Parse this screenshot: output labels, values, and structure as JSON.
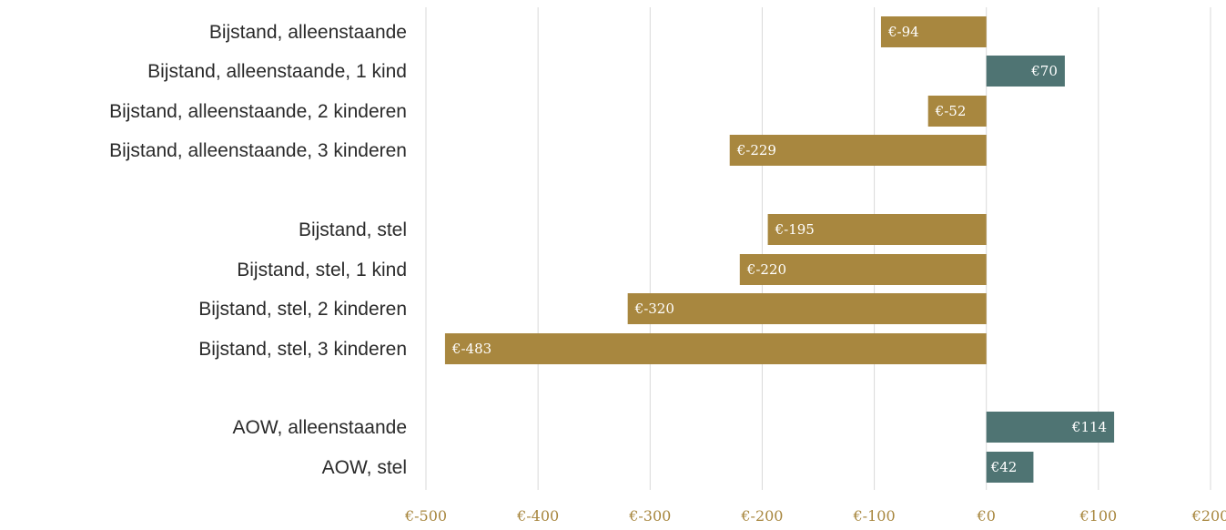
{
  "chart_data": {
    "type": "bar",
    "orientation": "horizontal",
    "title": "",
    "xlabel": "",
    "ylabel": "",
    "xlim": [
      -500,
      200
    ],
    "grid": "vertical",
    "legend": "none",
    "categories": [
      "Bijstand, alleenstaande",
      "Bijstand, alleenstaande, 1 kind",
      "Bijstand, alleenstaande, 2 kinderen",
      "Bijstand, alleenstaande, 3 kinderen",
      "Bijstand, stel",
      "Bijstand, stel, 1 kind",
      "Bijstand, stel, 2 kinderen",
      "Bijstand, stel, 3 kinderen",
      "AOW, alleenstaande",
      "AOW, stel"
    ],
    "groups": [
      [
        0,
        1,
        2,
        3
      ],
      [
        4,
        5,
        6,
        7
      ],
      [
        8,
        9
      ]
    ],
    "values": [
      -94,
      70,
      -52,
      -229,
      -195,
      -220,
      -320,
      -483,
      114,
      42
    ],
    "data_labels": [
      "€-94",
      "€70",
      "€-52",
      "€-229",
      "€-195",
      "€-220",
      "€-320",
      "€-483",
      "€114",
      "€42"
    ],
    "ticks": [
      -500,
      -400,
      -300,
      -200,
      -100,
      0,
      100,
      200
    ],
    "tick_labels": [
      "€-500",
      "€-400",
      "€-300",
      "€-200",
      "€-100",
      "€0",
      "€100",
      "€200"
    ],
    "colors": {
      "negative": "#a8873f",
      "positive": "#4f7473",
      "grid": "#d9d9d9",
      "tick_text": "#a8873f",
      "label_text": "#2a2a2a"
    }
  }
}
